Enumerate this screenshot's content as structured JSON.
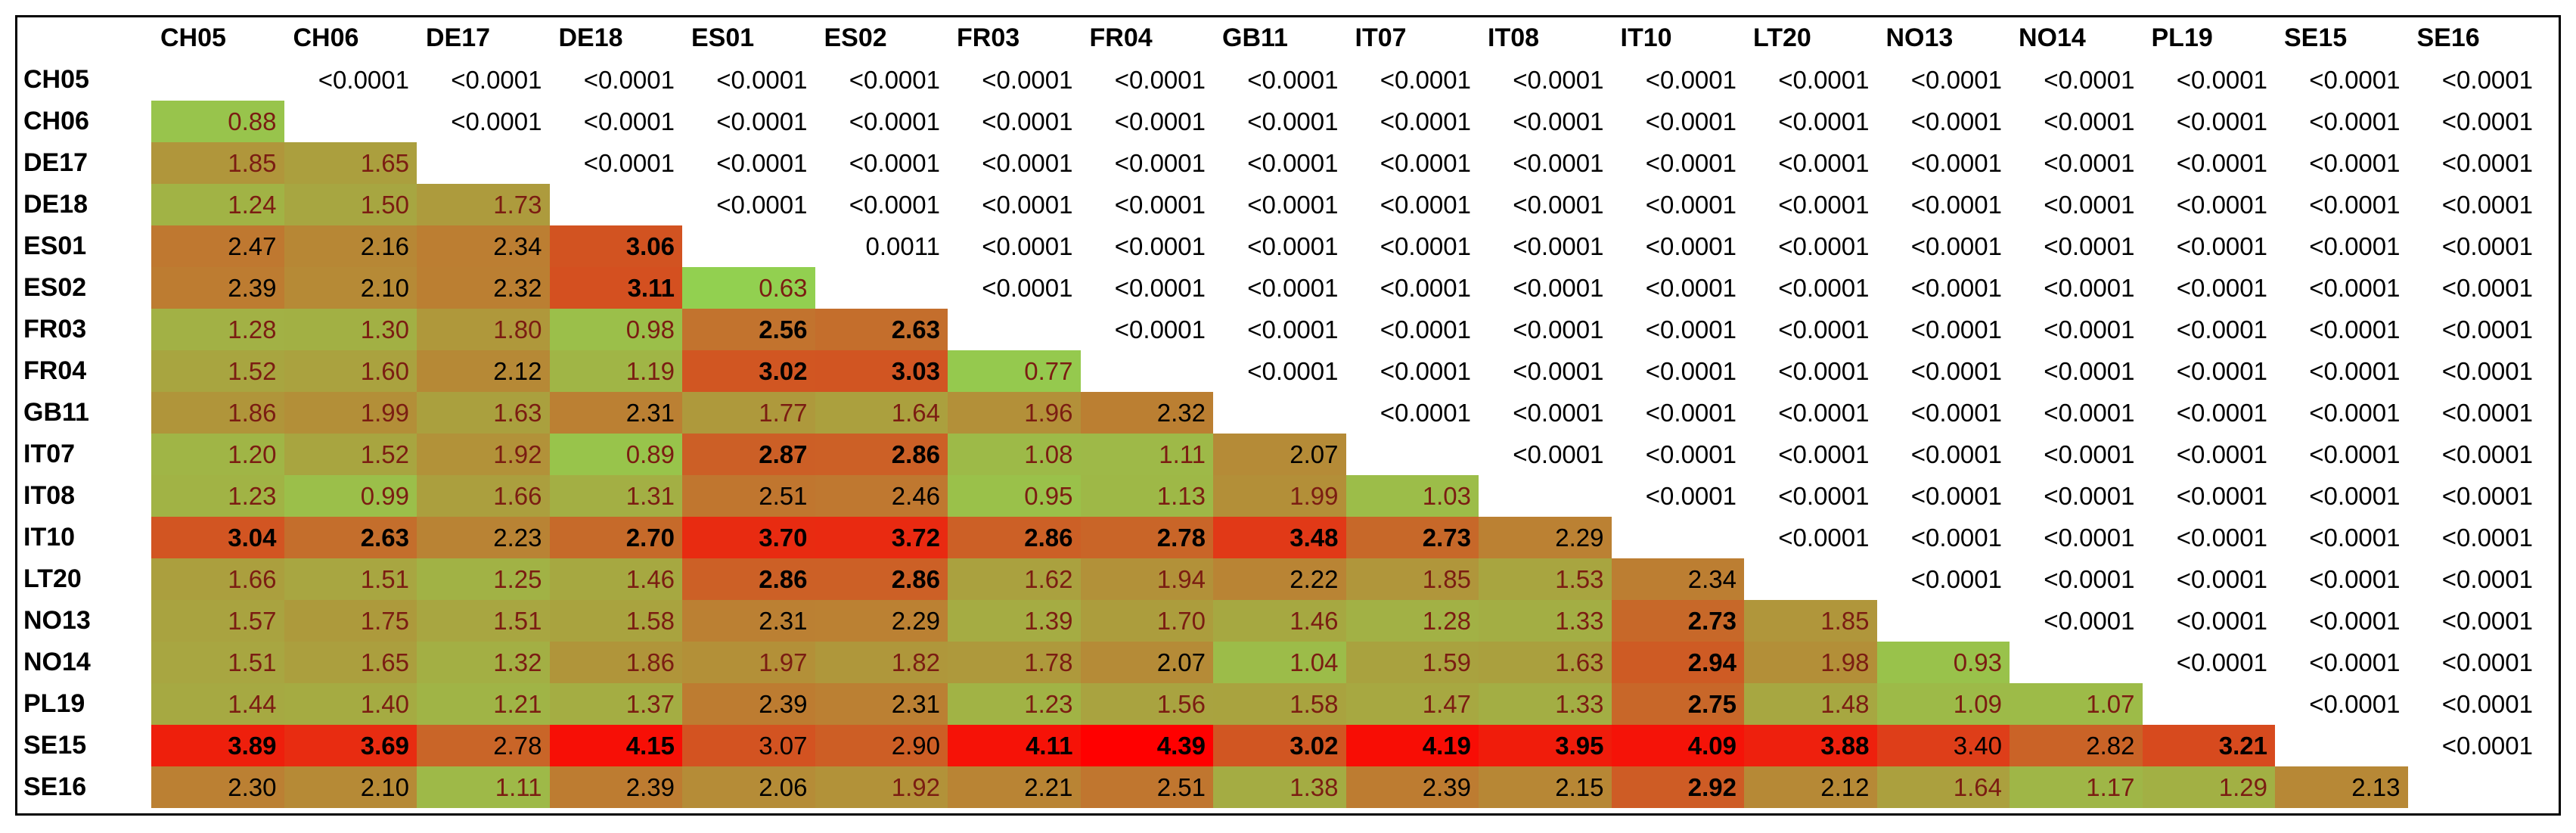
{
  "chart_data": {
    "type": "heatmap",
    "title": "",
    "labels": [
      "CH05",
      "CH06",
      "DE17",
      "DE18",
      "ES01",
      "ES02",
      "FR03",
      "FR04",
      "GB11",
      "IT07",
      "IT08",
      "IT10",
      "LT20",
      "NO13",
      "NO14",
      "PL19",
      "SE15",
      "SE16"
    ],
    "lower_triangle_values": [
      [],
      [
        0.88
      ],
      [
        1.85,
        1.65
      ],
      [
        1.24,
        1.5,
        1.73
      ],
      [
        2.47,
        2.16,
        2.34,
        3.06
      ],
      [
        2.39,
        2.1,
        2.32,
        3.11,
        0.63
      ],
      [
        1.28,
        1.3,
        1.8,
        0.98,
        2.56,
        2.63
      ],
      [
        1.52,
        1.6,
        2.12,
        1.19,
        3.02,
        3.03,
        0.77
      ],
      [
        1.86,
        1.99,
        1.63,
        2.31,
        1.77,
        1.64,
        1.96,
        2.32
      ],
      [
        1.2,
        1.52,
        1.92,
        0.89,
        2.87,
        2.86,
        1.08,
        1.11,
        2.07
      ],
      [
        1.23,
        0.99,
        1.66,
        1.31,
        2.51,
        2.46,
        0.95,
        1.13,
        1.99,
        1.03
      ],
      [
        3.04,
        2.63,
        2.23,
        2.7,
        3.7,
        3.72,
        2.86,
        2.78,
        3.48,
        2.73,
        2.29
      ],
      [
        1.66,
        1.51,
        1.25,
        1.46,
        2.86,
        2.86,
        1.62,
        1.94,
        2.22,
        1.85,
        1.53,
        2.34
      ],
      [
        1.57,
        1.75,
        1.51,
        1.58,
        2.31,
        2.29,
        1.39,
        1.7,
        1.46,
        1.28,
        1.33,
        2.73,
        1.85
      ],
      [
        1.51,
        1.65,
        1.32,
        1.86,
        1.97,
        1.82,
        1.78,
        2.07,
        1.04,
        1.59,
        1.63,
        2.94,
        1.98,
        0.93
      ],
      [
        1.44,
        1.4,
        1.21,
        1.37,
        2.39,
        2.31,
        1.23,
        1.56,
        1.58,
        1.47,
        1.33,
        2.75,
        1.48,
        1.09,
        1.07
      ],
      [
        3.89,
        3.69,
        2.78,
        4.15,
        3.07,
        2.9,
        4.11,
        4.39,
        3.02,
        4.19,
        3.95,
        4.09,
        3.88,
        3.4,
        2.82,
        3.21
      ],
      [
        2.3,
        2.1,
        1.11,
        2.39,
        2.06,
        1.92,
        2.21,
        2.51,
        1.38,
        2.39,
        2.15,
        2.92,
        2.12,
        1.64,
        1.17,
        1.29,
        2.13
      ]
    ],
    "lower_triangle_text": [
      [],
      [
        "0.88"
      ],
      [
        "1.85",
        "1.65"
      ],
      [
        "1.24",
        "1.50",
        "1.73"
      ],
      [
        "2.47",
        "2.16",
        "2.34",
        "3.06"
      ],
      [
        "2.39",
        "2.10",
        "2.32",
        "3.11",
        "0.63"
      ],
      [
        "1.28",
        "1.30",
        "1.80",
        "0.98",
        "2.56",
        "2.63"
      ],
      [
        "1.52",
        "1.60",
        "2.12",
        "1.19",
        "3.02",
        "3.03",
        "0.77"
      ],
      [
        "1.86",
        "1.99",
        "1.63",
        "2.31",
        "1.77",
        "1.64",
        "1.96",
        "2.32"
      ],
      [
        "1.20",
        "1.52",
        "1.92",
        "0.89",
        "2.87",
        "2.86",
        "1.08",
        "1.11",
        "2.07"
      ],
      [
        "1.23",
        "0.99",
        "1.66",
        "1.31",
        "2.51",
        "2.46",
        "0.95",
        "1.13",
        "1.99",
        "1.03"
      ],
      [
        "3.04",
        "2.63",
        "2.23",
        "2.70",
        "3.70",
        "3.72",
        "2.86",
        "2.78",
        "3.48",
        "2.73",
        "2.29"
      ],
      [
        "1.66",
        "1.51",
        "1.25",
        "1.46",
        "2.86",
        "2.86",
        "1.62",
        "1.94",
        "2.22",
        "1.85",
        "1.53",
        "2.34"
      ],
      [
        "1.57",
        "1.75",
        "1.51",
        "1.58",
        "2.31",
        "2.29",
        "1.39",
        "1.70",
        "1.46",
        "1.28",
        "1.33",
        "2.73",
        "1.85"
      ],
      [
        "1.51",
        "1.65",
        "1.32",
        "1.86",
        "1.97",
        "1.82",
        "1.78",
        "2.07",
        "1.04",
        "1.59",
        "1.63",
        "2.94",
        "1.98",
        "0.93"
      ],
      [
        "1.44",
        "1.40",
        "1.21",
        "1.37",
        "2.39",
        "2.31",
        "1.23",
        "1.56",
        "1.58",
        "1.47",
        "1.33",
        "2.75",
        "1.48",
        "1.09",
        "1.07"
      ],
      [
        "3.89",
        "3.69",
        "2.78",
        "4.15",
        "3.07",
        "2.90",
        "4.11",
        "4.39",
        "3.02",
        "4.19",
        "3.95",
        "4.09",
        "3.88",
        "3.40",
        "2.82",
        "3.21"
      ],
      [
        "2.30",
        "2.10",
        "1.11",
        "2.39",
        "2.06",
        "1.92",
        "2.21",
        "2.51",
        "1.38",
        "2.39",
        "2.15",
        "2.92",
        "2.12",
        "1.64",
        "1.17",
        "1.29",
        "2.13"
      ]
    ],
    "bold_cells": [
      [
        4,
        3
      ],
      [
        5,
        3
      ],
      [
        6,
        4
      ],
      [
        6,
        5
      ],
      [
        7,
        4
      ],
      [
        7,
        5
      ],
      [
        9,
        4
      ],
      [
        9,
        5
      ],
      [
        11,
        0
      ],
      [
        11,
        1
      ],
      [
        11,
        3
      ],
      [
        11,
        4
      ],
      [
        11,
        5
      ],
      [
        11,
        6
      ],
      [
        11,
        7
      ],
      [
        11,
        8
      ],
      [
        11,
        9
      ],
      [
        12,
        4
      ],
      [
        12,
        5
      ],
      [
        13,
        11
      ],
      [
        14,
        11
      ],
      [
        15,
        11
      ],
      [
        16,
        0
      ],
      [
        16,
        1
      ],
      [
        16,
        3
      ],
      [
        16,
        6
      ],
      [
        16,
        7
      ],
      [
        16,
        8
      ],
      [
        16,
        9
      ],
      [
        16,
        10
      ],
      [
        16,
        11
      ],
      [
        16,
        12
      ],
      [
        16,
        15
      ],
      [
        17,
        11
      ]
    ],
    "upper_triangle_pvalues": [
      [
        "<0.0001",
        "<0.0001",
        "<0.0001",
        "<0.0001",
        "<0.0001",
        "<0.0001",
        "<0.0001",
        "<0.0001",
        "<0.0001",
        "<0.0001",
        "<0.0001",
        "<0.0001",
        "<0.0001",
        "<0.0001",
        "<0.0001",
        "<0.0001",
        "<0.0001"
      ],
      [
        "<0.0001",
        "<0.0001",
        "<0.0001",
        "<0.0001",
        "<0.0001",
        "<0.0001",
        "<0.0001",
        "<0.0001",
        "<0.0001",
        "<0.0001",
        "<0.0001",
        "<0.0001",
        "<0.0001",
        "<0.0001",
        "<0.0001",
        "<0.0001"
      ],
      [
        "<0.0001",
        "<0.0001",
        "<0.0001",
        "<0.0001",
        "<0.0001",
        "<0.0001",
        "<0.0001",
        "<0.0001",
        "<0.0001",
        "<0.0001",
        "<0.0001",
        "<0.0001",
        "<0.0001",
        "<0.0001",
        "<0.0001"
      ],
      [
        "<0.0001",
        "<0.0001",
        "<0.0001",
        "<0.0001",
        "<0.0001",
        "<0.0001",
        "<0.0001",
        "<0.0001",
        "<0.0001",
        "<0.0001",
        "<0.0001",
        "<0.0001",
        "<0.0001",
        "<0.0001"
      ],
      [
        "0.0011",
        "<0.0001",
        "<0.0001",
        "<0.0001",
        "<0.0001",
        "<0.0001",
        "<0.0001",
        "<0.0001",
        "<0.0001",
        "<0.0001",
        "<0.0001",
        "<0.0001",
        "<0.0001"
      ],
      [
        "<0.0001",
        "<0.0001",
        "<0.0001",
        "<0.0001",
        "<0.0001",
        "<0.0001",
        "<0.0001",
        "<0.0001",
        "<0.0001",
        "<0.0001",
        "<0.0001",
        "<0.0001"
      ],
      [
        "<0.0001",
        "<0.0001",
        "<0.0001",
        "<0.0001",
        "<0.0001",
        "<0.0001",
        "<0.0001",
        "<0.0001",
        "<0.0001",
        "<0.0001",
        "<0.0001"
      ],
      [
        "<0.0001",
        "<0.0001",
        "<0.0001",
        "<0.0001",
        "<0.0001",
        "<0.0001",
        "<0.0001",
        "<0.0001",
        "<0.0001",
        "<0.0001"
      ],
      [
        "<0.0001",
        "<0.0001",
        "<0.0001",
        "<0.0001",
        "<0.0001",
        "<0.0001",
        "<0.0001",
        "<0.0001",
        "<0.0001"
      ],
      [
        "<0.0001",
        "<0.0001",
        "<0.0001",
        "<0.0001",
        "<0.0001",
        "<0.0001",
        "<0.0001",
        "<0.0001"
      ],
      [
        "<0.0001",
        "<0.0001",
        "<0.0001",
        "<0.0001",
        "<0.0001",
        "<0.0001",
        "<0.0001"
      ],
      [
        "<0.0001",
        "<0.0001",
        "<0.0001",
        "<0.0001",
        "<0.0001",
        "<0.0001"
      ],
      [
        "<0.0001",
        "<0.0001",
        "<0.0001",
        "<0.0001",
        "<0.0001"
      ],
      [
        "<0.0001",
        "<0.0001",
        "<0.0001",
        "<0.0001"
      ],
      [
        "<0.0001",
        "<0.0001",
        "<0.0001"
      ],
      [
        "<0.0001",
        "<0.0001"
      ],
      [
        "<0.0001"
      ],
      []
    ],
    "color_scale": {
      "low": "#92d050",
      "mid": "#c0762f",
      "high": "#ff0000",
      "min": 0.63,
      "max": 4.39
    },
    "grid": false
  }
}
